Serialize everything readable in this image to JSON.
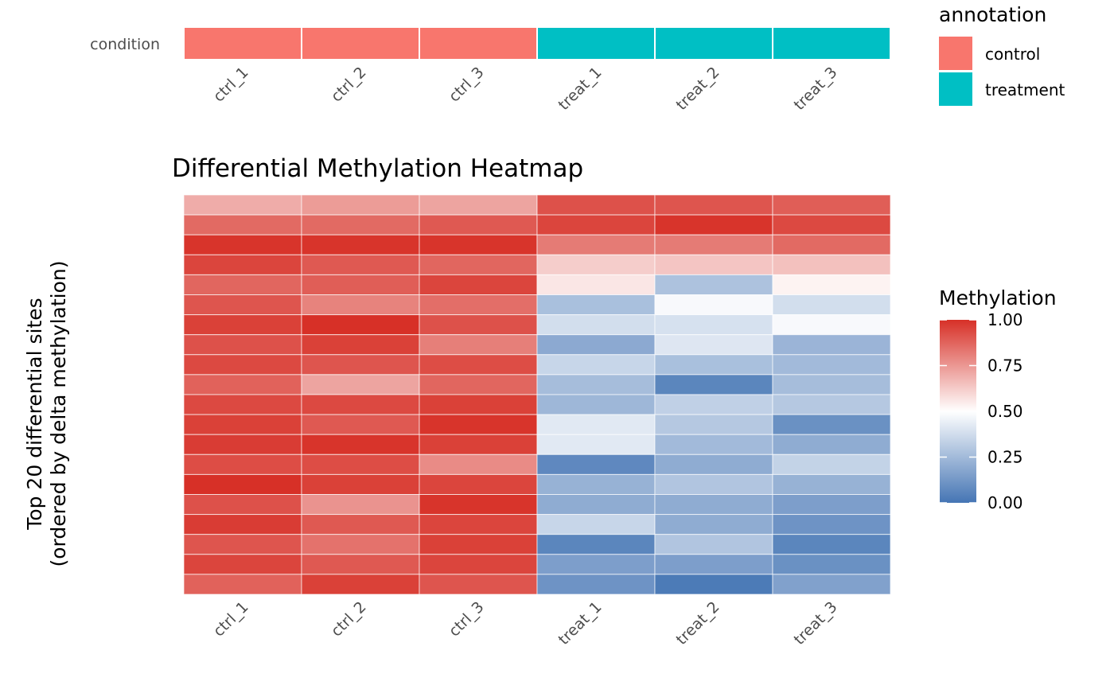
{
  "chart_data": {
    "type": "heatmap",
    "title": "Differential Methylation Heatmap",
    "xlabel": "",
    "ylabel_lines": [
      "Top 20 differential sites",
      "(ordered by delta methylation)"
    ],
    "columns": [
      "ctrl_1",
      "ctrl_2",
      "ctrl_3",
      "treat_1",
      "treat_2",
      "treat_3"
    ],
    "row_count": 20,
    "values": [
      [
        0.7,
        0.74,
        0.72,
        0.92,
        0.91,
        0.89
      ],
      [
        0.86,
        0.86,
        0.9,
        0.95,
        0.99,
        0.94
      ],
      [
        0.99,
        0.99,
        0.99,
        0.82,
        0.82,
        0.86
      ],
      [
        0.95,
        0.9,
        0.87,
        0.62,
        0.64,
        0.65
      ],
      [
        0.87,
        0.89,
        0.95,
        0.56,
        0.28,
        0.53
      ],
      [
        0.91,
        0.8,
        0.85,
        0.27,
        0.48,
        0.38
      ],
      [
        0.96,
        1.0,
        0.92,
        0.38,
        0.39,
        0.48
      ],
      [
        0.92,
        0.96,
        0.81,
        0.19,
        0.41,
        0.23
      ],
      [
        0.94,
        0.91,
        0.93,
        0.35,
        0.27,
        0.25
      ],
      [
        0.88,
        0.72,
        0.87,
        0.26,
        0.06,
        0.26
      ],
      [
        0.94,
        0.94,
        0.96,
        0.24,
        0.33,
        0.3
      ],
      [
        0.96,
        0.9,
        0.99,
        0.42,
        0.3,
        0.1
      ],
      [
        0.97,
        0.99,
        0.96,
        0.42,
        0.25,
        0.2
      ],
      [
        0.93,
        0.93,
        0.78,
        0.07,
        0.2,
        0.34
      ],
      [
        1.0,
        0.96,
        0.95,
        0.22,
        0.29,
        0.22
      ],
      [
        0.92,
        0.76,
        0.99,
        0.2,
        0.2,
        0.15
      ],
      [
        0.97,
        0.9,
        0.95,
        0.35,
        0.2,
        0.11
      ],
      [
        0.91,
        0.84,
        0.96,
        0.06,
        0.29,
        0.06
      ],
      [
        0.95,
        0.9,
        0.95,
        0.15,
        0.15,
        0.1
      ],
      [
        0.88,
        0.96,
        0.91,
        0.11,
        0.02,
        0.16
      ]
    ],
    "color_scale": {
      "name": "Methylation",
      "low": "#4575b4",
      "mid": "#ffffff",
      "high": "#d73027",
      "midpoint": 0.5,
      "limits": [
        0,
        1
      ],
      "breaks": [
        1.0,
        0.75,
        0.5,
        0.25,
        0.0
      ],
      "break_labels": [
        "1.00",
        "0.75",
        "0.50",
        "0.25",
        "0.00"
      ]
    },
    "annotation": {
      "row_label": "condition",
      "legend_title": "annotation",
      "levels": [
        {
          "label": "control",
          "color": "#f8766d"
        },
        {
          "label": "treatment",
          "color": "#00bfc4"
        }
      ],
      "assignment": [
        "control",
        "control",
        "control",
        "treatment",
        "treatment",
        "treatment"
      ]
    }
  }
}
